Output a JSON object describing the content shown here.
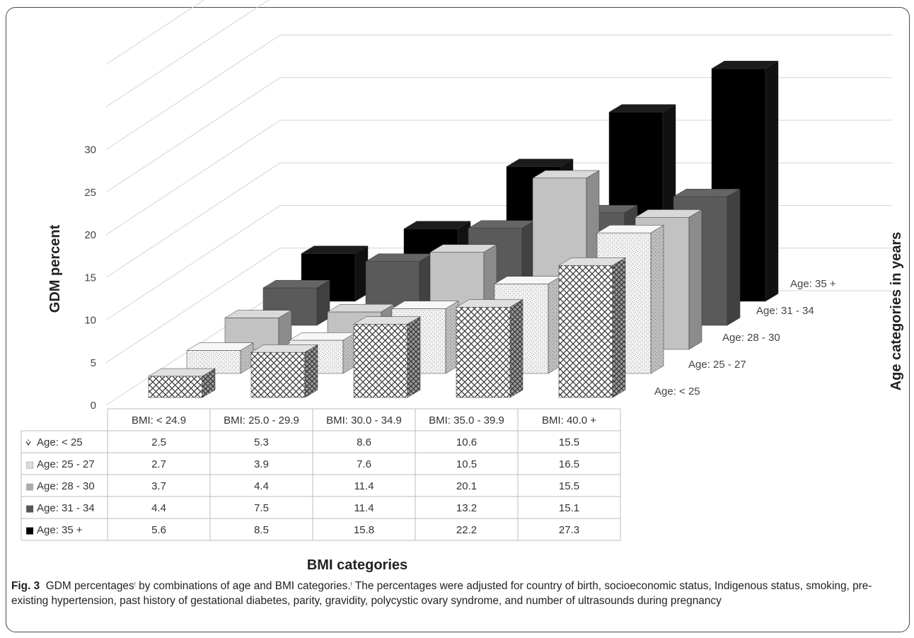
{
  "chart_data": {
    "type": "bar",
    "subtype": "3d-bar-with-data-table",
    "ylabel": "GDM percent",
    "xlabel": "BMI categories",
    "zlabel": "Age categories in years",
    "yticks": [
      "0",
      "5",
      "10",
      "15",
      "20",
      "25",
      "30"
    ],
    "ylim": [
      0,
      30
    ],
    "categories": [
      "BMI: < 24.9",
      "BMI: 25.0 - 29.9",
      "BMI: 30.0 - 34.9",
      "BMI: 35.0 - 39.9",
      "BMI: 40.0 +"
    ],
    "series": [
      {
        "name": "Age: < 25",
        "table_label": "Age: < 25",
        "legend_marker": "⩒",
        "values": [
          2.5,
          5.3,
          8.6,
          10.6,
          15.5
        ],
        "value_labels": [
          "2.5",
          "5.3",
          "8.6",
          "10.6",
          "15.5"
        ],
        "fill": "crosshatch",
        "color": "#cfcfcf"
      },
      {
        "name": "Age: 25 - 27",
        "table_label": "Age: 25 - 27",
        "legend_marker": "▨",
        "values": [
          2.7,
          3.9,
          7.6,
          10.5,
          16.5
        ],
        "value_labels": [
          "2.7",
          "3.9",
          "7.6",
          "10.5",
          "16.5"
        ],
        "fill": "speckle",
        "color": "#ececec"
      },
      {
        "name": "Age: 28 - 30",
        "table_label": "Age: 28 - 30",
        "legend_marker": "■",
        "values": [
          3.7,
          4.4,
          11.4,
          20.1,
          15.5
        ],
        "value_labels": [
          "3.7",
          "4.4",
          "11.4",
          "20.1",
          "15.5"
        ],
        "fill": "solid",
        "color": "#c2c2c2"
      },
      {
        "name": "Age: 31 - 34",
        "table_label": "Age: 31 - 34",
        "legend_marker": "■",
        "values": [
          4.4,
          7.5,
          11.4,
          13.2,
          15.1
        ],
        "value_labels": [
          "4.4",
          "7.5",
          "11.4",
          "13.2",
          "15.1"
        ],
        "fill": "solid",
        "color": "#5a5a5a"
      },
      {
        "name": "Age: 35 +",
        "table_label": "Age: 35 +",
        "legend_marker": "■",
        "values": [
          5.6,
          8.5,
          15.8,
          22.2,
          27.3
        ],
        "value_labels": [
          "5.6",
          "8.5",
          "15.8",
          "22.2",
          "27.3"
        ],
        "fill": "solid",
        "color": "#000000"
      }
    ],
    "depth_labels": [
      "Age: < 25",
      "Age: 25 - 27",
      "Age: 28 - 30",
      "Age: 31 - 34",
      "Age: 35 +"
    ],
    "grid": true
  },
  "caption": {
    "label": "Fig. 3",
    "text_part1": "GDM percentages",
    "sup1": "!",
    "text_part2": " by combinations of age and BMI categories.",
    "sup2": "!",
    "text_part3": " The percentages were adjusted for country of birth, socioeconomic status, Indigenous status, smoking, pre-existing hypertension, past history of gestational diabetes, parity, gravidity, polycystic ovary syndrome, and number of ultrasounds during pregnancy"
  }
}
